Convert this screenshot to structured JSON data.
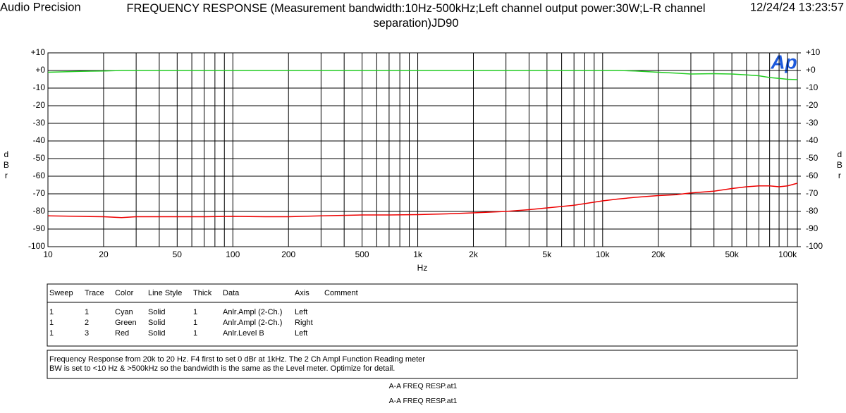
{
  "header": {
    "brand": "Audio Precision",
    "timestamp": "12/24/24 13:23:57"
  },
  "chart_data": {
    "type": "line",
    "title": "FREQUENCY RESPONSE  (Measurement bandwidth:10Hz-500kHz;Left channel output power:30W;L-R channel separation)JD90",
    "xlabel": "Hz",
    "ylabel": "dBr",
    "y2label": "dBr",
    "xscale": "log",
    "grid": true,
    "xlim": [
      10,
      113000
    ],
    "xticks": [
      10,
      20,
      50,
      100,
      200,
      500,
      {
        "value": 1000,
        "label": "1k"
      },
      {
        "value": 2000,
        "label": "2k"
      },
      {
        "value": 5000,
        "label": "5k"
      },
      {
        "value": 10000,
        "label": "10k"
      },
      {
        "value": 20000,
        "label": "20k"
      },
      {
        "value": 50000,
        "label": "50k"
      },
      {
        "value": 100000,
        "label": "100k"
      }
    ],
    "ylim": [
      -100,
      10
    ],
    "yticks": [
      {
        "value": 10,
        "label": "+10"
      },
      {
        "value": 0,
        "label": "+0"
      },
      -10,
      -20,
      -30,
      -40,
      -50,
      -60,
      -70,
      -80,
      -90,
      -100
    ],
    "y2lim": [
      -100,
      10
    ],
    "y2ticks": [
      {
        "value": 10,
        "label": "+10"
      },
      {
        "value": 0,
        "label": "+0"
      },
      -10,
      -20,
      -30,
      -40,
      -50,
      -60,
      -70,
      -80,
      -90,
      -100
    ],
    "x": [
      10,
      15,
      20,
      25,
      30,
      40,
      50,
      70,
      100,
      150,
      200,
      300,
      500,
      700,
      1000,
      1500,
      2000,
      3000,
      4000,
      5000,
      7000,
      10000,
      12000,
      15000,
      20000,
      25000,
      30000,
      40000,
      50000,
      60000,
      70000,
      80000,
      90000,
      100000,
      113000
    ],
    "series": [
      {
        "color": "#22cc22",
        "axis": "y2",
        "values": [
          -1,
          -0.5,
          -0.3,
          0,
          0,
          0,
          0,
          0,
          0,
          0,
          0,
          0,
          0,
          0,
          0,
          0,
          0,
          0,
          0,
          0,
          0,
          0,
          0,
          -0.3,
          -1,
          -1.5,
          -2,
          -1.8,
          -2,
          -2.5,
          -3,
          -4,
          -4.5,
          -5,
          -5.2
        ]
      },
      {
        "color": "#ee0000",
        "values": [
          -82.5,
          -82.8,
          -83,
          -83.5,
          -83,
          -83,
          -83,
          -83,
          -82.8,
          -83,
          -83,
          -82.5,
          -82,
          -82,
          -81.8,
          -81.3,
          -80.8,
          -80,
          -79,
          -78,
          -76.5,
          -74,
          -73,
          -72,
          -71,
          -70.5,
          -69.5,
          -68.5,
          -67,
          -66,
          -65.5,
          -65.5,
          -66,
          -65.5,
          -64
        ]
      }
    ]
  },
  "table": {
    "columns": [
      "Sweep",
      "Trace",
      "Color",
      "Line Style",
      "Thick",
      "Data",
      "Axis",
      "Comment"
    ],
    "rows": [
      [
        "1",
        "1",
        "Cyan",
        "Solid",
        "1",
        "Anlr.Ampl (2-Ch.)",
        "Left"
      ],
      [
        "1",
        "2",
        "Green",
        "Solid",
        "1",
        "Anlr.Ampl (2-Ch.)",
        "Right"
      ],
      [
        "1",
        "3",
        "Red",
        "Solid",
        "1",
        "Anlr.Level B",
        "Left"
      ]
    ]
  },
  "notes": [
    "Frequency Response from 20k to 20 Hz.  F4 first to set 0 dBr at 1kHz.  The 2 Ch Ampl Function Reading meter",
    "BW is set to <10 Hz & >500kHz so the bandwidth is the same as the Level meter.  Optimize for detail."
  ],
  "footer": [
    "A-A FREQ RESP.at1",
    "A-A FREQ RESP.at1"
  ]
}
